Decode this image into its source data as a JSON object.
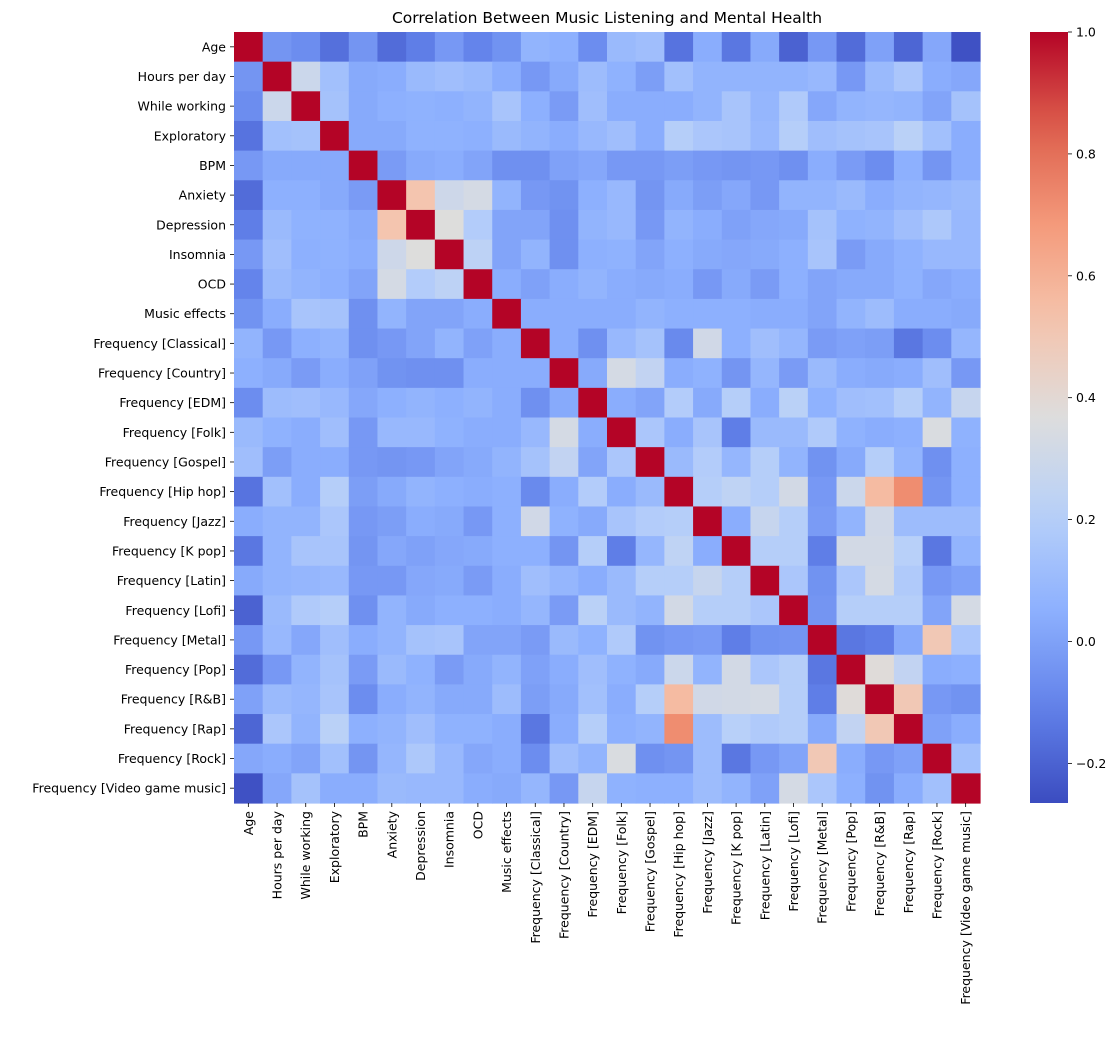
{
  "chart_data": {
    "type": "heatmap",
    "title": "Correlation Between Music Listening and Mental Health",
    "colormap": "coolwarm",
    "vmin": -0.265,
    "vmax": 1.0,
    "colorbar_ticks": [
      -0.2,
      0.0,
      0.2,
      0.4,
      0.6,
      0.8,
      1.0
    ],
    "colorbar_tick_labels": [
      "−0.2",
      "0.0",
      "0.2",
      "0.4",
      "0.6",
      "0.8",
      "1.0"
    ],
    "labels": [
      "Age",
      "Hours per day",
      "While working",
      "Exploratory",
      "BPM",
      "Anxiety",
      "Depression",
      "Insomnia",
      "OCD",
      "Music effects",
      "Frequency [Classical]",
      "Frequency [Country]",
      "Frequency [EDM]",
      "Frequency [Folk]",
      "Frequency [Gospel]",
      "Frequency [Hip hop]",
      "Frequency [Jazz]",
      "Frequency [K pop]",
      "Frequency [Latin]",
      "Frequency [Lofi]",
      "Frequency [Metal]",
      "Frequency [Pop]",
      "Frequency [R&B]",
      "Frequency [Rap]",
      "Frequency [Rock]",
      "Frequency [Video game music]"
    ],
    "matrix": [
      [
        1.0,
        -0.04,
        -0.07,
        -0.16,
        -0.04,
        -0.17,
        -0.12,
        -0.03,
        -0.1,
        -0.05,
        0.07,
        0.05,
        -0.07,
        0.1,
        0.12,
        -0.15,
        0.04,
        -0.14,
        0.03,
        -0.2,
        -0.03,
        -0.17,
        0.0,
        -0.19,
        0.02,
        -0.25
      ],
      [
        -0.04,
        1.0,
        0.29,
        0.13,
        0.03,
        0.04,
        0.1,
        0.12,
        0.1,
        0.04,
        -0.03,
        0.03,
        0.11,
        0.06,
        -0.01,
        0.13,
        0.07,
        0.07,
        0.07,
        0.07,
        0.09,
        -0.03,
        0.1,
        0.16,
        0.04,
        0.02
      ],
      [
        -0.07,
        0.29,
        1.0,
        0.14,
        0.03,
        0.05,
        0.06,
        0.05,
        0.07,
        0.15,
        0.05,
        -0.02,
        0.12,
        0.04,
        0.04,
        0.04,
        0.07,
        0.15,
        0.08,
        0.18,
        0.02,
        0.07,
        0.08,
        0.07,
        0.01,
        0.14
      ],
      [
        -0.15,
        0.13,
        0.14,
        1.0,
        0.03,
        0.03,
        0.06,
        0.06,
        0.05,
        0.1,
        0.07,
        0.04,
        0.09,
        0.12,
        0.04,
        0.2,
        0.16,
        0.15,
        0.09,
        0.2,
        0.12,
        0.14,
        0.15,
        0.22,
        0.13,
        0.04
      ],
      [
        -0.03,
        0.03,
        0.03,
        0.03,
        1.0,
        -0.02,
        0.03,
        0.04,
        0.01,
        -0.06,
        -0.06,
        0.0,
        0.02,
        -0.03,
        -0.03,
        -0.01,
        -0.03,
        -0.04,
        -0.03,
        -0.06,
        0.04,
        -0.02,
        -0.07,
        0.05,
        -0.04,
        0.04
      ],
      [
        -0.17,
        0.05,
        0.05,
        0.03,
        -0.02,
        1.0,
        0.52,
        0.3,
        0.33,
        0.07,
        -0.03,
        -0.05,
        0.05,
        0.09,
        -0.04,
        0.03,
        -0.01,
        0.02,
        -0.03,
        0.07,
        0.07,
        0.1,
        0.04,
        0.07,
        0.08,
        0.1
      ],
      [
        -0.12,
        0.1,
        0.06,
        0.06,
        0.03,
        0.52,
        1.0,
        0.37,
        0.19,
        0.01,
        0.01,
        -0.06,
        0.07,
        0.09,
        -0.03,
        0.07,
        0.04,
        0.0,
        0.02,
        0.03,
        0.14,
        0.06,
        0.07,
        0.12,
        0.17,
        0.09
      ],
      [
        -0.03,
        0.12,
        0.05,
        0.06,
        0.04,
        0.3,
        0.37,
        1.0,
        0.23,
        0.01,
        0.07,
        -0.06,
        0.05,
        0.06,
        0.01,
        0.05,
        0.03,
        0.02,
        0.03,
        0.05,
        0.15,
        -0.02,
        0.03,
        0.06,
        0.09,
        0.09
      ],
      [
        -0.1,
        0.1,
        0.07,
        0.05,
        0.01,
        0.33,
        0.19,
        0.23,
        1.0,
        0.04,
        0.0,
        0.04,
        0.07,
        0.04,
        0.03,
        0.04,
        -0.03,
        0.03,
        -0.02,
        0.05,
        0.01,
        0.03,
        0.03,
        0.06,
        0.02,
        0.04
      ],
      [
        -0.05,
        0.04,
        0.15,
        0.14,
        -0.06,
        0.07,
        0.01,
        0.01,
        0.04,
        1.0,
        0.04,
        0.04,
        0.04,
        0.04,
        0.07,
        0.05,
        0.05,
        0.05,
        0.04,
        0.04,
        0.01,
        0.07,
        0.11,
        0.04,
        0.04,
        0.03
      ],
      [
        0.07,
        -0.03,
        0.05,
        0.07,
        -0.06,
        -0.03,
        0.01,
        0.07,
        0.0,
        0.04,
        1.0,
        0.04,
        -0.06,
        0.09,
        0.14,
        -0.08,
        0.31,
        0.05,
        0.12,
        0.08,
        -0.02,
        0.0,
        -0.01,
        -0.14,
        -0.07,
        0.08
      ],
      [
        0.05,
        0.03,
        -0.02,
        0.04,
        0.0,
        -0.05,
        -0.06,
        -0.06,
        0.04,
        0.04,
        0.04,
        1.0,
        0.03,
        0.33,
        0.25,
        0.04,
        0.06,
        -0.04,
        0.08,
        -0.02,
        0.1,
        0.04,
        0.03,
        0.04,
        0.12,
        -0.03
      ],
      [
        -0.07,
        0.11,
        0.12,
        0.09,
        0.02,
        0.05,
        0.07,
        0.05,
        0.07,
        0.04,
        -0.06,
        0.03,
        1.0,
        0.04,
        0.01,
        0.19,
        0.03,
        0.2,
        0.04,
        0.22,
        0.06,
        0.12,
        0.13,
        0.2,
        0.07,
        0.27
      ],
      [
        0.1,
        0.06,
        0.04,
        0.12,
        -0.03,
        0.09,
        0.09,
        0.06,
        0.04,
        0.04,
        0.09,
        0.33,
        0.04,
        1.0,
        0.16,
        0.04,
        0.15,
        -0.12,
        0.1,
        0.1,
        0.18,
        0.06,
        0.04,
        0.05,
        0.35,
        0.06
      ],
      [
        0.12,
        -0.01,
        0.04,
        0.04,
        -0.03,
        -0.04,
        -0.03,
        0.01,
        0.03,
        0.07,
        0.14,
        0.25,
        0.01,
        0.16,
        1.0,
        0.1,
        0.19,
        0.08,
        0.2,
        0.07,
        -0.05,
        0.03,
        0.2,
        0.07,
        -0.06,
        0.05
      ],
      [
        -0.15,
        0.13,
        0.04,
        0.2,
        -0.01,
        0.03,
        0.07,
        0.05,
        0.04,
        0.05,
        -0.08,
        0.04,
        0.19,
        0.04,
        0.1,
        1.0,
        0.2,
        0.24,
        0.2,
        0.32,
        -0.03,
        0.29,
        0.56,
        0.72,
        -0.04,
        0.05
      ],
      [
        0.04,
        0.07,
        0.07,
        0.16,
        -0.03,
        -0.01,
        0.04,
        0.03,
        -0.03,
        0.05,
        0.31,
        0.06,
        0.03,
        0.15,
        0.19,
        0.2,
        1.0,
        0.04,
        0.27,
        0.2,
        -0.02,
        0.07,
        0.31,
        0.11,
        0.11,
        0.11
      ],
      [
        -0.14,
        0.07,
        0.15,
        0.15,
        -0.04,
        0.02,
        0.0,
        0.02,
        0.03,
        0.05,
        0.05,
        -0.04,
        0.2,
        -0.12,
        0.08,
        0.24,
        0.04,
        1.0,
        0.2,
        0.2,
        -0.12,
        0.32,
        0.32,
        0.21,
        -0.14,
        0.07
      ],
      [
        0.03,
        0.07,
        0.08,
        0.09,
        -0.03,
        -0.03,
        0.02,
        0.03,
        -0.02,
        0.04,
        0.12,
        0.08,
        0.04,
        0.1,
        0.2,
        0.2,
        0.27,
        0.2,
        1.0,
        0.16,
        -0.05,
        0.16,
        0.33,
        0.18,
        -0.03,
        0.0
      ],
      [
        -0.2,
        0.1,
        0.18,
        0.2,
        -0.06,
        0.07,
        0.03,
        0.05,
        0.05,
        0.04,
        0.08,
        -0.02,
        0.22,
        0.1,
        0.07,
        0.32,
        0.2,
        0.2,
        0.16,
        1.0,
        -0.04,
        0.2,
        0.2,
        0.2,
        0.01,
        0.33
      ],
      [
        -0.03,
        0.09,
        0.02,
        0.12,
        0.04,
        0.07,
        0.14,
        0.15,
        0.01,
        0.01,
        -0.02,
        0.1,
        0.06,
        0.18,
        -0.05,
        -0.03,
        -0.02,
        -0.12,
        -0.05,
        -0.04,
        1.0,
        -0.14,
        -0.12,
        0.03,
        0.5,
        0.16
      ],
      [
        -0.17,
        -0.03,
        0.07,
        0.14,
        -0.02,
        0.1,
        0.06,
        -0.02,
        0.03,
        0.07,
        0.0,
        0.04,
        0.12,
        0.06,
        0.03,
        0.29,
        0.07,
        0.32,
        0.16,
        0.2,
        -0.14,
        1.0,
        0.38,
        0.25,
        0.04,
        0.05
      ],
      [
        0.0,
        0.1,
        0.08,
        0.15,
        -0.07,
        0.04,
        0.07,
        0.03,
        0.03,
        0.11,
        -0.01,
        0.03,
        0.13,
        0.04,
        0.2,
        0.56,
        0.31,
        0.32,
        0.33,
        0.2,
        -0.12,
        0.38,
        1.0,
        0.5,
        -0.03,
        -0.05
      ],
      [
        -0.19,
        0.16,
        0.07,
        0.22,
        0.05,
        0.07,
        0.12,
        0.06,
        0.06,
        0.04,
        -0.14,
        0.04,
        0.2,
        0.05,
        0.07,
        0.72,
        0.11,
        0.21,
        0.18,
        0.2,
        0.03,
        0.25,
        0.5,
        1.0,
        0.0,
        0.04
      ],
      [
        0.02,
        0.04,
        0.01,
        0.13,
        -0.04,
        0.08,
        0.17,
        0.09,
        0.02,
        0.04,
        -0.07,
        0.12,
        0.07,
        0.35,
        -0.06,
        -0.04,
        0.11,
        -0.14,
        -0.03,
        0.01,
        0.5,
        0.04,
        -0.03,
        0.0,
        1.0,
        0.13
      ],
      [
        -0.25,
        0.02,
        0.14,
        0.04,
        0.04,
        0.1,
        0.09,
        0.09,
        0.04,
        0.03,
        0.08,
        -0.03,
        0.27,
        0.06,
        0.05,
        0.05,
        0.11,
        0.07,
        0.0,
        0.33,
        0.16,
        0.05,
        -0.05,
        0.04,
        0.13,
        1.0
      ]
    ]
  }
}
